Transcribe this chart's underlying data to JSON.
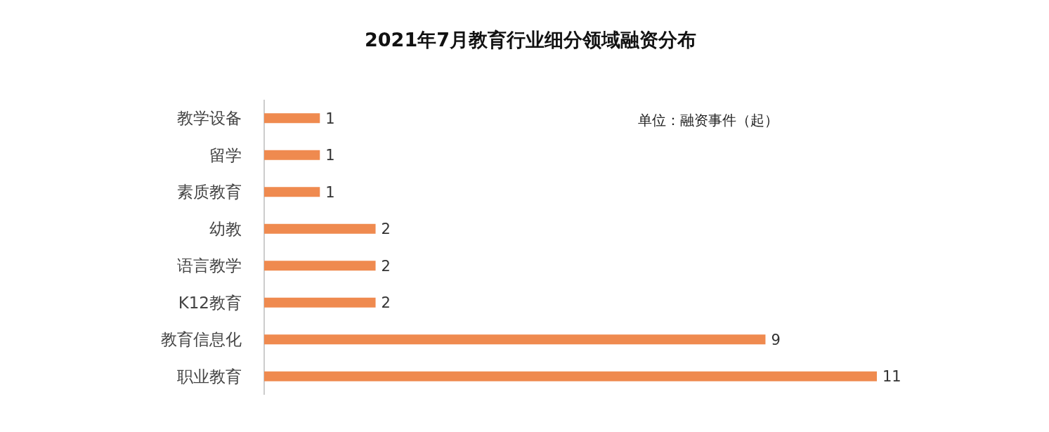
{
  "chart_data": {
    "type": "bar",
    "orientation": "horizontal",
    "title": "2021年7月教育行业细分领域融资分布",
    "categories": [
      "教学设备",
      "留学",
      "素质教育",
      "幼教",
      "语言教学",
      "K12教育",
      "教育信息化",
      "职业教育"
    ],
    "values": [
      1,
      1,
      1,
      2,
      2,
      2,
      9,
      11
    ],
    "color": "#ef8a4f",
    "data_labels": true,
    "annotations": [
      "单位：融资事件（起）"
    ]
  }
}
